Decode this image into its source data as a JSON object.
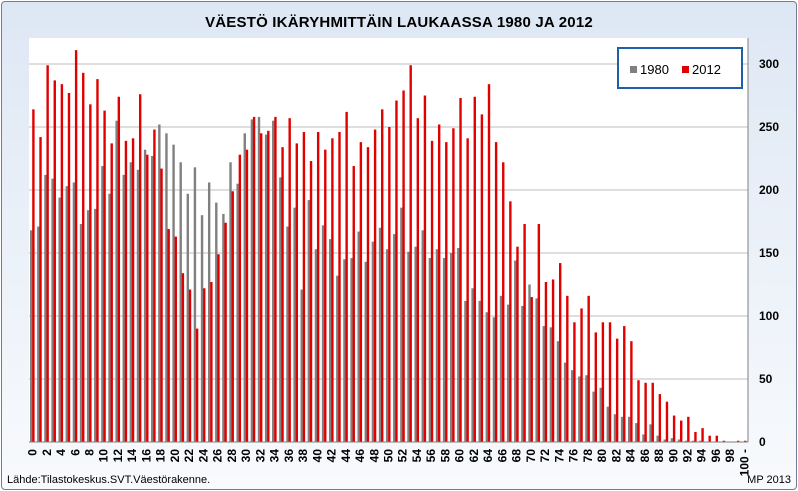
{
  "chart_data": {
    "type": "bar",
    "title": "VÄESTÖ IKÄRYHMITTÄIN LAUKAASSA 1980 JA 2012",
    "source": "Lähde:Tilastokeskus.SVT.Väestörakenne.",
    "credit": "MP 2013",
    "xlabel": "",
    "ylabel": "",
    "ylim": [
      0,
      300
    ],
    "yticks": [
      0,
      50,
      100,
      150,
      200,
      250,
      300
    ],
    "y_axis_side": "right",
    "grid": true,
    "legend_position": "top-right",
    "categories": [
      "0",
      "1",
      "2",
      "3",
      "4",
      "5",
      "6",
      "7",
      "8",
      "9",
      "10",
      "11",
      "12",
      "13",
      "14",
      "15",
      "16",
      "17",
      "18",
      "19",
      "20",
      "21",
      "22",
      "23",
      "24",
      "25",
      "26",
      "27",
      "28",
      "29",
      "30",
      "31",
      "32",
      "33",
      "34",
      "35",
      "36",
      "37",
      "38",
      "39",
      "40",
      "41",
      "42",
      "43",
      "44",
      "45",
      "46",
      "47",
      "48",
      "49",
      "50",
      "51",
      "52",
      "53",
      "54",
      "55",
      "56",
      "57",
      "58",
      "59",
      "60",
      "61",
      "62",
      "63",
      "64",
      "65",
      "66",
      "67",
      "68",
      "69",
      "70",
      "71",
      "72",
      "73",
      "74",
      "75",
      "76",
      "77",
      "78",
      "79",
      "80",
      "81",
      "82",
      "83",
      "84",
      "85",
      "86",
      "87",
      "88",
      "89",
      "90",
      "91",
      "92",
      "93",
      "94",
      "95",
      "96",
      "97",
      "98",
      "99",
      "100 -"
    ],
    "x_tick_labels": [
      "0",
      "2",
      "4",
      "6",
      "8",
      "10",
      "12",
      "14",
      "16",
      "18",
      "20",
      "22",
      "24",
      "26",
      "28",
      "30",
      "32",
      "34",
      "36",
      "38",
      "40",
      "42",
      "44",
      "46",
      "48",
      "50",
      "52",
      "54",
      "56",
      "58",
      "60",
      "62",
      "64",
      "66",
      "68",
      "70",
      "72",
      "74",
      "76",
      "78",
      "80",
      "82",
      "84",
      "86",
      "88",
      "90",
      "92",
      "94",
      "96",
      "98",
      "100 -"
    ],
    "series": [
      {
        "name": "1980",
        "color": "#808080",
        "values": [
          168,
          171,
          212,
          209,
          194,
          203,
          206,
          173,
          184,
          185,
          219,
          197,
          255,
          212,
          222,
          216,
          232,
          227,
          252,
          245,
          236,
          222,
          197,
          218,
          180,
          206,
          190,
          181,
          222,
          205,
          245,
          256,
          258,
          244,
          255,
          210,
          171,
          186,
          121,
          192,
          153,
          172,
          161,
          132,
          145,
          146,
          167,
          143,
          159,
          170,
          153,
          165,
          186,
          151,
          155,
          168,
          146,
          153,
          146,
          150,
          154,
          112,
          122,
          112,
          103,
          99,
          116,
          109,
          144,
          108,
          125,
          114,
          92,
          91,
          80,
          63,
          57,
          52,
          53,
          40,
          43,
          28,
          22,
          20,
          20,
          15,
          6,
          14,
          5,
          2,
          3,
          2,
          1,
          1,
          1,
          0,
          0,
          0,
          0,
          0,
          0
        ]
      },
      {
        "name": "2012",
        "color": "#e00000",
        "values": [
          264,
          242,
          299,
          287,
          284,
          277,
          311,
          293,
          268,
          288,
          263,
          237,
          274,
          239,
          241,
          276,
          228,
          248,
          217,
          169,
          163,
          134,
          121,
          90,
          122,
          127,
          149,
          174,
          199,
          228,
          232,
          258,
          245,
          247,
          258,
          234,
          257,
          237,
          246,
          223,
          246,
          232,
          241,
          246,
          262,
          219,
          238,
          234,
          248,
          264,
          250,
          271,
          279,
          299,
          257,
          275,
          239,
          252,
          238,
          249,
          273,
          241,
          274,
          260,
          284,
          238,
          222,
          191,
          155,
          173,
          115,
          173,
          127,
          129,
          142,
          116,
          95,
          106,
          116,
          87,
          95,
          95,
          82,
          92,
          80,
          49,
          47,
          47,
          38,
          32,
          21,
          17,
          20,
          8,
          11,
          5,
          5,
          1,
          0,
          1,
          1
        ]
      }
    ]
  }
}
